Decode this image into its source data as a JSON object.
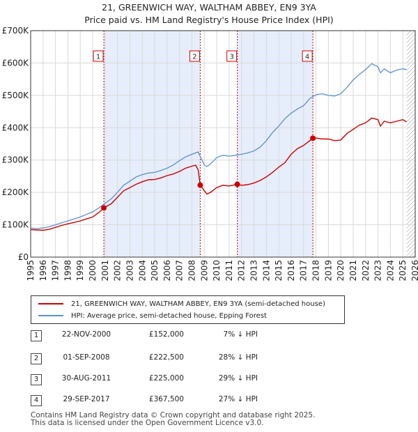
{
  "title_line1": "21, GREENWICH WAY, WALTHAM ABBEY, EN9 3YA",
  "title_line2": "Price paid vs. HM Land Registry's House Price Index (HPI)",
  "colors": {
    "property": "#cc0000",
    "hpi": "#5b8fd3",
    "shade": "#e6edfb"
  },
  "chart_data": {
    "type": "line",
    "xlim": [
      1995,
      2026
    ],
    "ylim": [
      0,
      700000
    ],
    "x_ticks": [
      1995,
      1996,
      1997,
      1998,
      1999,
      2000,
      2001,
      2002,
      2003,
      2004,
      2005,
      2006,
      2007,
      2008,
      2009,
      2010,
      2011,
      2012,
      2013,
      2014,
      2015,
      2016,
      2017,
      2018,
      2019,
      2020,
      2021,
      2022,
      2023,
      2024,
      2025,
      2026
    ],
    "y_ticks": [
      {
        "value": 0,
        "label": "£0"
      },
      {
        "value": 100000,
        "label": "£100K"
      },
      {
        "value": 200000,
        "label": "£200K"
      },
      {
        "value": 300000,
        "label": "£300K"
      },
      {
        "value": 400000,
        "label": "£400K"
      },
      {
        "value": 500000,
        "label": "£500K"
      },
      {
        "value": 600000,
        "label": "£600K"
      },
      {
        "value": 700000,
        "label": "£700K"
      }
    ],
    "shaded_ranges": [
      [
        2000.9,
        2008.67
      ],
      [
        2011.66,
        2017.75
      ]
    ],
    "hatch_from": 2025.3,
    "series": [
      {
        "name": "21, GREENWICH WAY, WALTHAM ABBEY, EN9 3YA (semi-detached house)",
        "color_key": "property",
        "x": [
          1995,
          1995.5,
          1996,
          1996.5,
          1997,
          1997.5,
          1998,
          1998.5,
          1999,
          1999.5,
          2000,
          2000.5,
          2000.9,
          2001.5,
          2002,
          2002.5,
          2003,
          2003.5,
          2004,
          2004.5,
          2005,
          2005.5,
          2006,
          2006.5,
          2007,
          2007.5,
          2008,
          2008.3,
          2008.5,
          2008.67,
          2009,
          2009.2,
          2009.5,
          2010,
          2010.5,
          2011,
          2011.66,
          2012,
          2012.5,
          2013,
          2013.5,
          2014,
          2014.5,
          2015,
          2015.5,
          2016,
          2016.5,
          2017,
          2017.75,
          2018,
          2018.5,
          2019,
          2019.5,
          2020,
          2020.5,
          2021,
          2021.5,
          2022,
          2022.5,
          2023,
          2023.2,
          2023.5,
          2024,
          2024.5,
          2025,
          2025.3
        ],
        "y": [
          85000,
          84000,
          83000,
          86000,
          92000,
          98000,
          103000,
          107000,
          112000,
          118000,
          124000,
          138000,
          152000,
          165000,
          185000,
          205000,
          215000,
          225000,
          233000,
          239000,
          240000,
          245000,
          252000,
          257000,
          265000,
          275000,
          281000,
          284000,
          270000,
          222500,
          205000,
          195000,
          200000,
          215000,
          222000,
          220000,
          225000,
          222000,
          224000,
          229000,
          237000,
          248000,
          262000,
          278000,
          292000,
          318000,
          335000,
          345000,
          367500,
          368000,
          365000,
          365000,
          360000,
          362000,
          382000,
          395000,
          408000,
          415000,
          430000,
          425000,
          405000,
          420000,
          415000,
          420000,
          425000,
          418000
        ]
      },
      {
        "name": "HPI: Average price, semi-detached house, Epping Forest",
        "color_key": "hpi",
        "x": [
          1995,
          1995.5,
          1996,
          1996.5,
          1997,
          1997.5,
          1998,
          1998.5,
          1999,
          1999.5,
          2000,
          2000.5,
          2001,
          2001.5,
          2002,
          2002.5,
          2003,
          2003.5,
          2004,
          2004.5,
          2005,
          2005.5,
          2006,
          2006.5,
          2007,
          2007.5,
          2008,
          2008.5,
          2009,
          2009.2,
          2009.5,
          2010,
          2010.5,
          2011,
          2011.5,
          2012,
          2012.5,
          2013,
          2013.5,
          2014,
          2014.5,
          2015,
          2015.5,
          2016,
          2016.5,
          2017,
          2017.5,
          2018,
          2018.5,
          2019,
          2019.5,
          2020,
          2020.5,
          2021,
          2021.5,
          2022,
          2022.5,
          2023,
          2023.2,
          2023.5,
          2024,
          2024.5,
          2025,
          2025.3
        ],
        "y": [
          90000,
          88000,
          90000,
          94000,
          100000,
          106000,
          112000,
          118000,
          124000,
          132000,
          140000,
          152000,
          166000,
          180000,
          200000,
          222000,
          235000,
          248000,
          255000,
          260000,
          262000,
          268000,
          275000,
          285000,
          298000,
          310000,
          318000,
          325000,
          285000,
          280000,
          288000,
          308000,
          315000,
          312000,
          315000,
          318000,
          322000,
          328000,
          340000,
          360000,
          385000,
          405000,
          428000,
          445000,
          458000,
          468000,
          490000,
          502000,
          505000,
          500000,
          498000,
          505000,
          525000,
          548000,
          565000,
          580000,
          598000,
          588000,
          570000,
          582000,
          570000,
          578000,
          582000,
          580000
        ]
      }
    ],
    "markers": [
      {
        "label": "1",
        "x": 2000.9,
        "y": 152000
      },
      {
        "label": "2",
        "x": 2008.67,
        "y": 222500
      },
      {
        "label": "3",
        "x": 2011.66,
        "y": 225000
      },
      {
        "label": "4",
        "x": 2017.75,
        "y": 367500
      }
    ]
  },
  "legend": {
    "property": "21, GREENWICH WAY, WALTHAM ABBEY, EN9 3YA (semi-detached house)",
    "hpi": "HPI: Average price, semi-detached house, Epping Forest"
  },
  "transactions": [
    {
      "num": "1",
      "date": "22-NOV-2000",
      "price": "£152,000",
      "hpi": "7% ↓ HPI"
    },
    {
      "num": "2",
      "date": "01-SEP-2008",
      "price": "£222,500",
      "hpi": "28% ↓ HPI"
    },
    {
      "num": "3",
      "date": "30-AUG-2011",
      "price": "£225,000",
      "hpi": "29% ↓ HPI"
    },
    {
      "num": "4",
      "date": "29-SEP-2017",
      "price": "£367,500",
      "hpi": "27% ↓ HPI"
    }
  ],
  "footer_line1": "Contains HM Land Registry data © Crown copyright and database right 2025.",
  "footer_line2": "This data is licensed under the Open Government Licence v3.0."
}
